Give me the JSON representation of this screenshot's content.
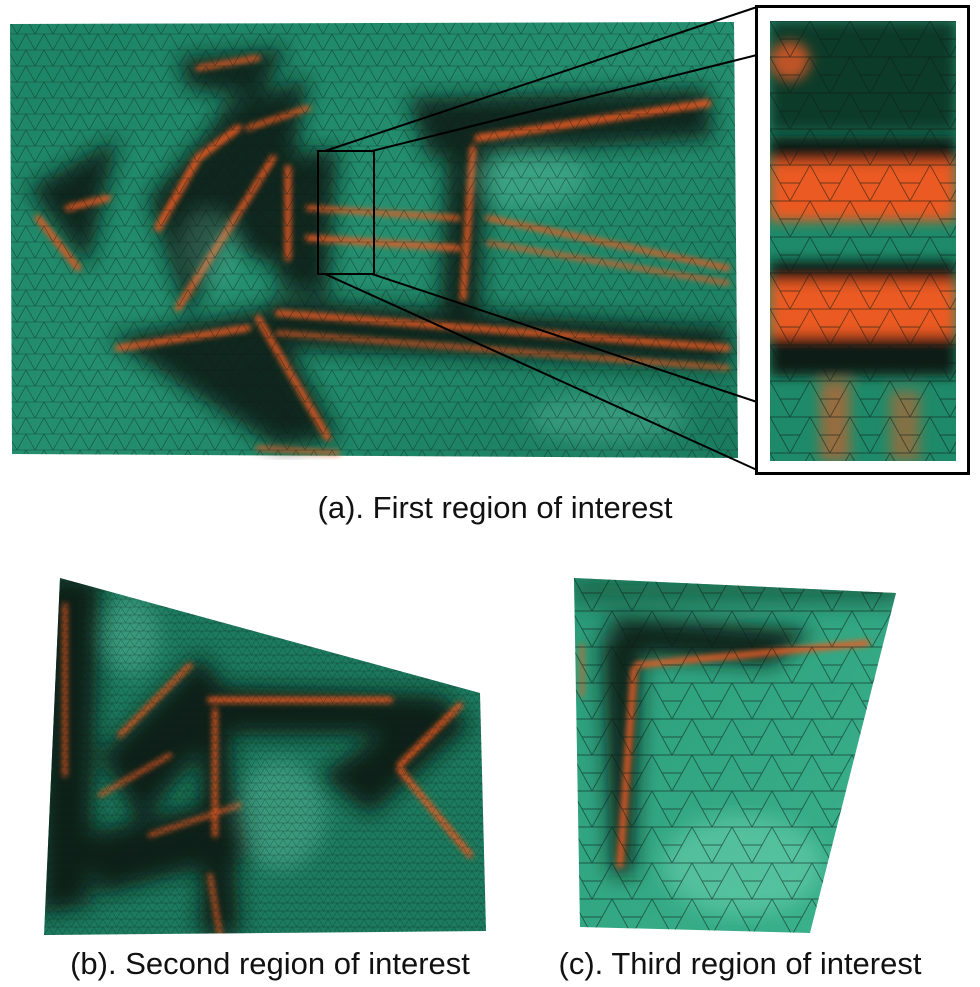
{
  "captions": {
    "a": "(a). First region of interest",
    "b": "(b). Second region of interest",
    "c": "(c). Third region of interest"
  },
  "colors": {
    "surface": "#1f8a6a",
    "surface_light": "#3cb48e",
    "shadow": "#0b1a14",
    "ridge": "#ea5a24",
    "mesh_line": "#0a1a14",
    "frame": "#000000"
  },
  "panels": [
    {
      "id": "a",
      "content": "triangulated terrain mesh with highlighted ridges",
      "has_zoom_inset": true
    },
    {
      "id": "b",
      "content": "triangulated terrain mesh, second region"
    },
    {
      "id": "c",
      "content": "triangulated terrain mesh, third region"
    }
  ]
}
